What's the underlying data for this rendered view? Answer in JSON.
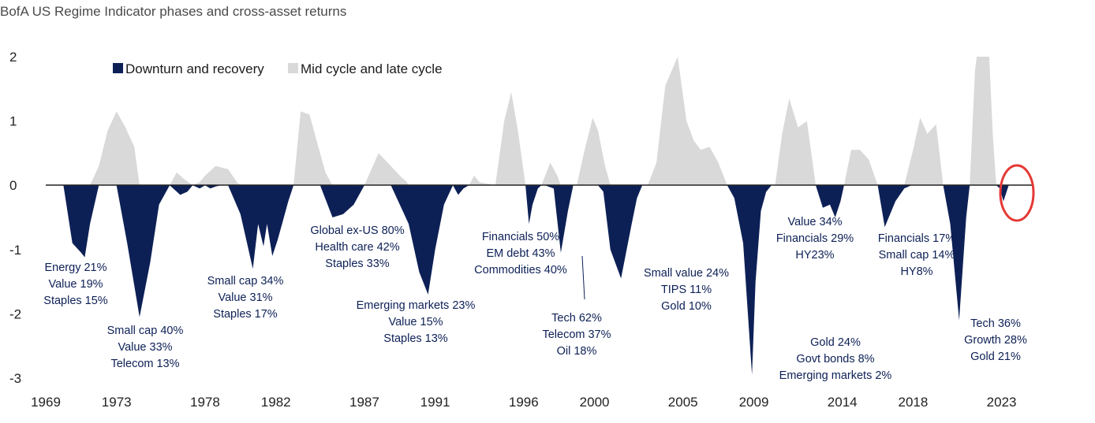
{
  "chart_data": {
    "type": "area",
    "title": "BofA US Regime Indicator phases and cross-asset returns",
    "xlabel": "",
    "ylabel": "",
    "xlim": [
      1969,
      2024.8
    ],
    "ylim": [
      -3,
      2
    ],
    "x_ticks": [
      "1969",
      "1973",
      "1978",
      "1982",
      "1987",
      "1991",
      "1996",
      "2000",
      "2005",
      "2009",
      "2014",
      "2018",
      "2023"
    ],
    "y_ticks": [
      "2",
      "1",
      "0",
      "-1",
      "-2",
      "-3"
    ],
    "legend": {
      "placement": "top-left",
      "entries": [
        {
          "label": "Downturn and recovery",
          "color": "#0d2056"
        },
        {
          "label": "Mid cycle and late cycle",
          "color": "#d9d9d9"
        }
      ]
    },
    "series": [
      {
        "name": "Downturn and recovery",
        "color": "#0d2056",
        "x": [
          1970.0,
          1970.5,
          1971.0,
          1971.2,
          1971.5,
          1972.0,
          1973.0,
          1973.6,
          1974.3,
          1974.9,
          1975.4,
          1976.0,
          1976.6,
          1977.0,
          1977.3,
          1977.7,
          1978.0,
          1978.3,
          1978.6,
          1978.9,
          1979.3,
          1980.0,
          1980.7,
          1981.0,
          1981.3,
          1981.5,
          1981.8,
          1982.1,
          1982.4,
          1982.7,
          1983.0,
          1984.5,
          1985.2,
          1985.8,
          1986.4,
          1987.0,
          1987.6,
          1988.5,
          1989.5,
          1990.1,
          1990.6,
          1991.0,
          1991.5,
          1992.0,
          1992.3,
          1992.6,
          1992.9,
          1993.3,
          1993.8,
          1994.1,
          1994.4,
          1996.1,
          1996.3,
          1996.5,
          1996.8,
          1997.0,
          1997.2,
          1997.7,
          1998.1,
          1998.5,
          1998.8,
          1999.0,
          1999.2,
          2000.2,
          2000.5,
          2000.9,
          2001.5,
          2002.1,
          2002.4,
          2002.7,
          2003.0,
          2007.5,
          2007.9,
          2008.4,
          2008.9,
          2009.1,
          2009.4,
          2009.7,
          2010.0,
          2010.2,
          2012.5,
          2012.9,
          2013.3,
          2013.6,
          2013.9,
          2014.1,
          2016.0,
          2016.4,
          2017.0,
          2017.5,
          2017.9,
          2018.0,
          2019.7,
          2020.1,
          2020.6,
          2021.0,
          2021.2,
          2021.5,
          2022.7,
          2022.9,
          2023.1,
          2023.4
        ],
        "values": [
          0,
          -0.9,
          -1.05,
          -1.12,
          -0.6,
          0,
          0,
          -0.9,
          -2.05,
          -1.2,
          -0.3,
          0,
          -0.15,
          -0.1,
          0,
          -0.05,
          0,
          -0.05,
          -0.02,
          0,
          0,
          -0.45,
          -1.3,
          -0.6,
          -0.95,
          -0.6,
          -1.1,
          -0.85,
          -0.55,
          -0.25,
          0,
          0,
          -0.5,
          -0.45,
          -0.3,
          0,
          0,
          0,
          -0.6,
          -1.35,
          -1.7,
          -1.0,
          -0.3,
          0,
          -0.15,
          -0.05,
          0,
          0,
          0,
          0,
          0,
          0,
          -0.6,
          -0.3,
          -0.05,
          0,
          0,
          -0.05,
          -1.05,
          -0.4,
          0,
          0,
          0,
          0,
          -0.1,
          -1.0,
          -1.45,
          -0.6,
          -0.2,
          0,
          0,
          0,
          -0.2,
          -0.9,
          -2.95,
          -1.5,
          -0.4,
          -0.1,
          0,
          0,
          0,
          -0.35,
          -0.3,
          -0.5,
          -0.25,
          0,
          0,
          -0.65,
          -0.25,
          -0.05,
          0,
          0,
          0,
          -0.6,
          -2.1,
          -0.5,
          0,
          0,
          0,
          -0.05,
          -0.25,
          0
        ]
      },
      {
        "name": "Mid cycle and late cycle",
        "color": "#d9d9d9",
        "x": [
          1971.5,
          1972.0,
          1972.5,
          1973.0,
          1973.5,
          1974.0,
          1974.3,
          1976.0,
          1976.4,
          1976.8,
          1977.3,
          1977.7,
          1978.0,
          1978.6,
          1979.3,
          1979.8,
          1980.0,
          1983.0,
          1983.4,
          1983.9,
          1984.4,
          1984.8,
          1985.2,
          1987.0,
          1987.8,
          1988.5,
          1989.0,
          1989.4,
          1989.5,
          1992.9,
          1993.2,
          1993.5,
          1994.4,
          1994.9,
          1995.3,
          1995.7,
          1996.1,
          1997.0,
          1997.5,
          1997.9,
          1998.1,
          1999.0,
          1999.4,
          1999.9,
          2000.2,
          2000.6,
          2000.9,
          2003.0,
          2003.5,
          2004.0,
          2004.7,
          2005.2,
          2005.6,
          2006.0,
          2006.5,
          2007.0,
          2007.5,
          2010.2,
          2010.6,
          2011.0,
          2011.5,
          2012.0,
          2012.5,
          2014.1,
          2014.5,
          2015.0,
          2015.5,
          2016.0,
          2017.5,
          2018.0,
          2018.4,
          2018.8,
          2019.3,
          2019.7,
          2021.2,
          2021.5,
          2021.6,
          2022.3,
          2022.5,
          2022.7
        ],
        "values": [
          0,
          0.3,
          0.85,
          1.15,
          0.9,
          0.6,
          0,
          0,
          0.2,
          0.1,
          0,
          0.05,
          0.15,
          0.3,
          0.25,
          0.05,
          0,
          0,
          1.15,
          1.1,
          0.6,
          0.2,
          0,
          0,
          0.5,
          0.3,
          0.15,
          0.05,
          0,
          0,
          0.15,
          0.05,
          0,
          1.0,
          1.45,
          0.8,
          0,
          0,
          0.35,
          0.15,
          0,
          0,
          0.5,
          1.05,
          0.85,
          0.3,
          0,
          0,
          0.35,
          1.55,
          2.0,
          1.0,
          0.7,
          0.55,
          0.6,
          0.35,
          0,
          0,
          0.8,
          1.35,
          0.9,
          1.0,
          0,
          0,
          0.55,
          0.55,
          0.4,
          0,
          0,
          0.55,
          1.05,
          0.8,
          0.95,
          0,
          0,
          1.8,
          2.0,
          2.0,
          0.8,
          0
        ],
        "legend_order": 2
      }
    ],
    "annotations": [
      {
        "lines": [
          "Energy 21%",
          "Value 19%",
          "Staples 15%"
        ]
      },
      {
        "lines": [
          "Small cap 40%",
          "Value 33%",
          "Telecom 13%"
        ]
      },
      {
        "lines": [
          "Small cap 34%",
          "Value 31%",
          "Staples 17%"
        ]
      },
      {
        "lines": [
          "Global ex-US 80%",
          "Health care 42%",
          "Staples 33%"
        ]
      },
      {
        "lines": [
          "Emerging markets 23%",
          "Value 15%",
          "Staples 13%"
        ]
      },
      {
        "lines": [
          "Financials 50%",
          "EM debt 43%",
          "Commodities 40%"
        ]
      },
      {
        "lines": [
          "Tech 62%",
          "Telecom 37%",
          "Oil 18%"
        ]
      },
      {
        "lines": [
          "Small value 24%",
          "TIPS 11%",
          "Gold 10%"
        ]
      },
      {
        "lines": [
          "Gold 24%",
          "Govt bonds 8%",
          "Emerging markets 2%"
        ]
      },
      {
        "lines": [
          "Value 34%",
          "Financials 29%",
          "HY23%"
        ]
      },
      {
        "lines": [
          "Financials 17%",
          "Small cap 14%",
          "HY8%"
        ]
      },
      {
        "lines": [
          "Tech 36%",
          "Growth 28%",
          "Gold 21%"
        ]
      }
    ],
    "highlight": {
      "shape": "circle",
      "color": "#e53935",
      "x": 2023.5,
      "y": 0
    }
  }
}
